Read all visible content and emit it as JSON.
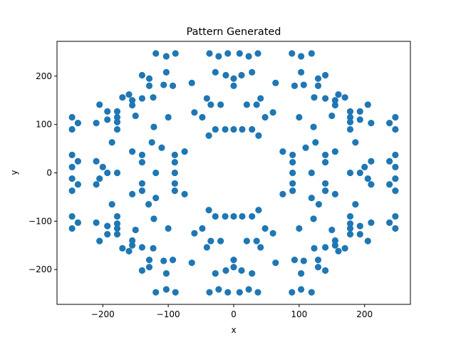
{
  "chart_data": {
    "type": "scatter",
    "title": "Pattern Generated",
    "xlabel": "x",
    "ylabel": "y",
    "xlim": [
      -270,
      270
    ],
    "ylim": [
      -272,
      272
    ],
    "xticks": [
      -200,
      -100,
      0,
      100,
      200
    ],
    "yticks": [
      -200,
      -100,
      0,
      100,
      200
    ],
    "xtick_labels": [
      "−200",
      "−100",
      "0",
      "100",
      "200"
    ],
    "ytick_labels": [
      "−200",
      "−100",
      "0",
      "100",
      "200"
    ],
    "grid": false,
    "marker_color": "#1f77b4",
    "points": [
      [
        -119,
        247
      ],
      [
        -103,
        241
      ],
      [
        -89,
        247
      ],
      [
        -37,
        247
      ],
      [
        -23,
        241
      ],
      [
        -9,
        247
      ],
      [
        9,
        247
      ],
      [
        23,
        241
      ],
      [
        37,
        247
      ],
      [
        89,
        247
      ],
      [
        103,
        241
      ],
      [
        119,
        247
      ],
      [
        -28,
        208
      ],
      [
        -12,
        202
      ],
      [
        0,
        195
      ],
      [
        0,
        180
      ],
      [
        12,
        202
      ],
      [
        28,
        208
      ],
      [
        -103,
        208
      ],
      [
        -93,
        180
      ],
      [
        -107,
        182
      ],
      [
        -140,
        202
      ],
      [
        -129,
        195
      ],
      [
        -129,
        180
      ],
      [
        103,
        208
      ],
      [
        93,
        180
      ],
      [
        107,
        182
      ],
      [
        140,
        202
      ],
      [
        129,
        195
      ],
      [
        129,
        180
      ],
      [
        -64,
        186
      ],
      [
        64,
        186
      ],
      [
        -170,
        156
      ],
      [
        -155,
        150
      ],
      [
        -155,
        140
      ],
      [
        -160,
        162
      ],
      [
        -140,
        154
      ],
      [
        -123,
        156
      ],
      [
        -122,
        95
      ],
      [
        -150,
        118
      ],
      [
        -100,
        115
      ],
      [
        170,
        156
      ],
      [
        155,
        150
      ],
      [
        155,
        140
      ],
      [
        160,
        162
      ],
      [
        140,
        154
      ],
      [
        123,
        156
      ],
      [
        122,
        95
      ],
      [
        150,
        118
      ],
      [
        100,
        115
      ],
      [
        -41,
        154
      ],
      [
        -20,
        141
      ],
      [
        -35,
        141
      ],
      [
        -60,
        125
      ],
      [
        -48,
        115
      ],
      [
        -28,
        90
      ],
      [
        -13,
        90
      ],
      [
        -38,
        77
      ],
      [
        41,
        154
      ],
      [
        20,
        141
      ],
      [
        35,
        141
      ],
      [
        60,
        125
      ],
      [
        48,
        115
      ],
      [
        28,
        90
      ],
      [
        13,
        90
      ],
      [
        38,
        77
      ],
      [
        0,
        90
      ],
      [
        -178,
        127
      ],
      [
        -178,
        115
      ],
      [
        -193,
        127
      ],
      [
        -193,
        110
      ],
      [
        -205,
        141
      ],
      [
        -178,
        90
      ],
      [
        -178,
        105
      ],
      [
        -210,
        103
      ],
      [
        178,
        127
      ],
      [
        178,
        115
      ],
      [
        193,
        127
      ],
      [
        193,
        110
      ],
      [
        205,
        141
      ],
      [
        178,
        90
      ],
      [
        178,
        105
      ],
      [
        210,
        103
      ],
      [
        -247,
        115
      ],
      [
        -247,
        90
      ],
      [
        -238,
        103
      ],
      [
        247,
        115
      ],
      [
        247,
        90
      ],
      [
        238,
        103
      ],
      [
        -186,
        63
      ],
      [
        186,
        63
      ],
      [
        -125,
        63
      ],
      [
        -110,
        52
      ],
      [
        125,
        63
      ],
      [
        110,
        52
      ],
      [
        -155,
        44
      ],
      [
        -140,
        37
      ],
      [
        -140,
        22
      ],
      [
        -155,
        -44
      ],
      [
        -140,
        -37
      ],
      [
        -140,
        -22
      ],
      [
        155,
        44
      ],
      [
        140,
        37
      ],
      [
        140,
        22
      ],
      [
        155,
        -44
      ],
      [
        140,
        -37
      ],
      [
        140,
        -22
      ],
      [
        -247,
        37
      ],
      [
        -247,
        12
      ],
      [
        -238,
        24
      ],
      [
        -247,
        -37
      ],
      [
        -247,
        -12
      ],
      [
        -238,
        -24
      ],
      [
        247,
        37
      ],
      [
        247,
        12
      ],
      [
        238,
        24
      ],
      [
        247,
        -37
      ],
      [
        247,
        -12
      ],
      [
        238,
        -24
      ],
      [
        -210,
        24
      ],
      [
        -200,
        12
      ],
      [
        -193,
        0
      ],
      [
        -178,
        0
      ],
      [
        -205,
        -12
      ],
      [
        -210,
        -24
      ],
      [
        210,
        24
      ],
      [
        200,
        12
      ],
      [
        193,
        0
      ],
      [
        178,
        0
      ],
      [
        205,
        -12
      ],
      [
        210,
        -24
      ],
      [
        -90,
        37
      ],
      [
        -90,
        22
      ],
      [
        -90,
        0
      ],
      [
        -90,
        -22
      ],
      [
        -90,
        -37
      ],
      [
        -75,
        44
      ],
      [
        -75,
        -44
      ],
      [
        90,
        37
      ],
      [
        90,
        22
      ],
      [
        90,
        0
      ],
      [
        90,
        -22
      ],
      [
        90,
        -37
      ],
      [
        75,
        44
      ],
      [
        75,
        -44
      ],
      [
        -119,
        0
      ],
      [
        119,
        0
      ],
      [
        -119,
        -52
      ],
      [
        -130,
        -65
      ],
      [
        119,
        -52
      ],
      [
        130,
        -65
      ],
      [
        -186,
        -65
      ],
      [
        186,
        -65
      ],
      [
        -247,
        -115
      ],
      [
        -247,
        -90
      ],
      [
        -238,
        -103
      ],
      [
        247,
        -115
      ],
      [
        247,
        -90
      ],
      [
        238,
        -103
      ],
      [
        -178,
        -127
      ],
      [
        -178,
        -115
      ],
      [
        -193,
        -127
      ],
      [
        -193,
        -110
      ],
      [
        -205,
        -141
      ],
      [
        -178,
        -90
      ],
      [
        -178,
        -105
      ],
      [
        -210,
        -103
      ],
      [
        178,
        -127
      ],
      [
        178,
        -115
      ],
      [
        193,
        -127
      ],
      [
        193,
        -110
      ],
      [
        205,
        -141
      ],
      [
        178,
        -90
      ],
      [
        178,
        -105
      ],
      [
        210,
        -103
      ],
      [
        -41,
        -154
      ],
      [
        -20,
        -141
      ],
      [
        -35,
        -141
      ],
      [
        -60,
        -125
      ],
      [
        -48,
        -115
      ],
      [
        -28,
        -90
      ],
      [
        -13,
        -90
      ],
      [
        -38,
        -77
      ],
      [
        41,
        -154
      ],
      [
        20,
        -141
      ],
      [
        35,
        -141
      ],
      [
        60,
        -125
      ],
      [
        48,
        -115
      ],
      [
        28,
        -90
      ],
      [
        13,
        -90
      ],
      [
        38,
        -77
      ],
      [
        0,
        -90
      ],
      [
        -64,
        -186
      ],
      [
        64,
        -186
      ],
      [
        -170,
        -156
      ],
      [
        -155,
        -150
      ],
      [
        -155,
        -140
      ],
      [
        -160,
        -162
      ],
      [
        -140,
        -154
      ],
      [
        -123,
        -156
      ],
      [
        -122,
        -95
      ],
      [
        -150,
        -118
      ],
      [
        -100,
        -115
      ],
      [
        170,
        -156
      ],
      [
        155,
        -150
      ],
      [
        155,
        -140
      ],
      [
        160,
        -162
      ],
      [
        140,
        -154
      ],
      [
        123,
        -156
      ],
      [
        122,
        -95
      ],
      [
        150,
        -118
      ],
      [
        100,
        -115
      ],
      [
        -28,
        -208
      ],
      [
        -12,
        -202
      ],
      [
        0,
        -195
      ],
      [
        0,
        -180
      ],
      [
        12,
        -202
      ],
      [
        28,
        -208
      ],
      [
        -103,
        -208
      ],
      [
        -93,
        -180
      ],
      [
        -107,
        -182
      ],
      [
        -140,
        -202
      ],
      [
        -129,
        -195
      ],
      [
        -129,
        -180
      ],
      [
        103,
        -208
      ],
      [
        93,
        -180
      ],
      [
        107,
        -182
      ],
      [
        140,
        -202
      ],
      [
        129,
        -195
      ],
      [
        129,
        -180
      ],
      [
        -119,
        -247
      ],
      [
        -103,
        -241
      ],
      [
        -89,
        -247
      ],
      [
        -37,
        -247
      ],
      [
        -23,
        -241
      ],
      [
        -9,
        -247
      ],
      [
        9,
        -247
      ],
      [
        23,
        -241
      ],
      [
        37,
        -247
      ],
      [
        89,
        -247
      ],
      [
        103,
        -241
      ],
      [
        119,
        -247
      ]
    ]
  }
}
